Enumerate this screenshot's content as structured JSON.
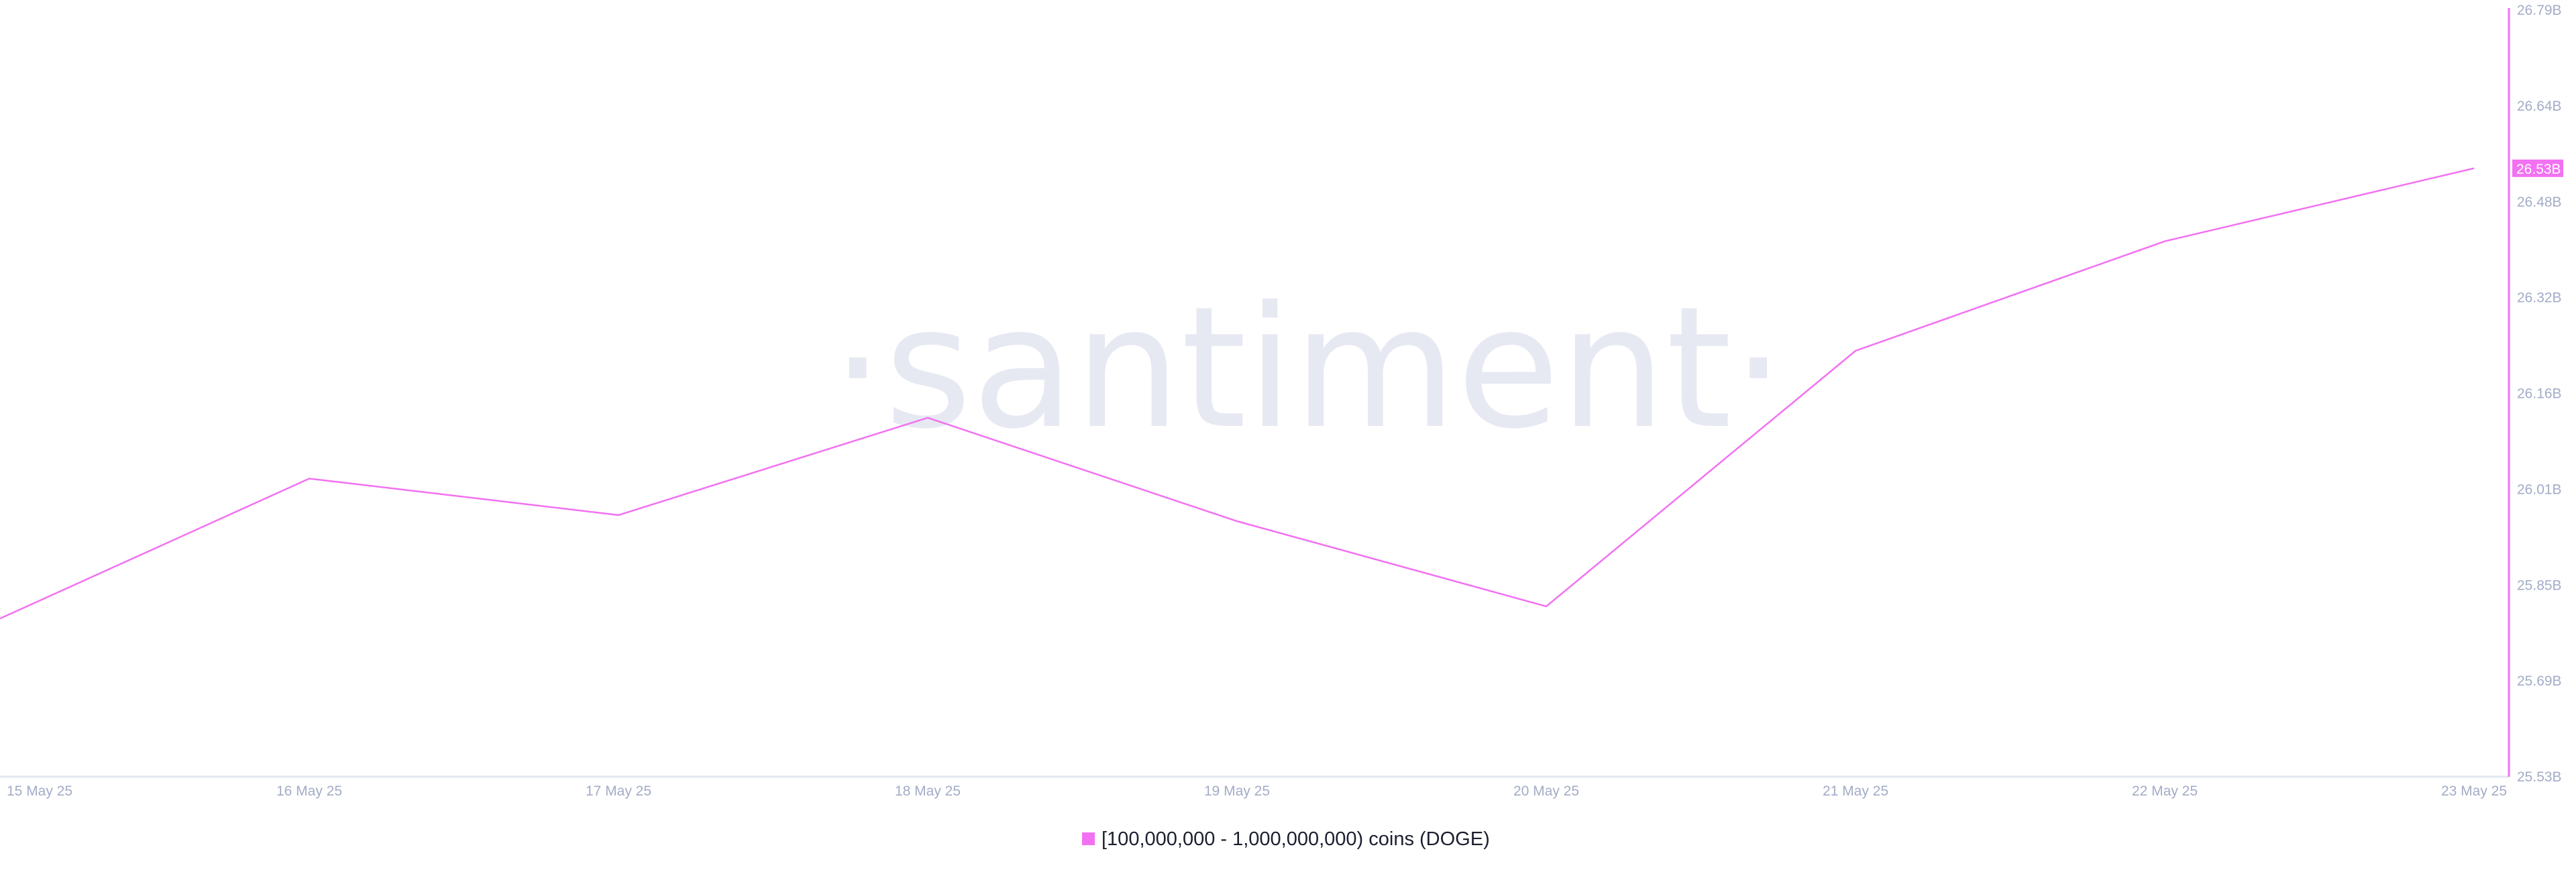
{
  "watermark": "·santiment·",
  "chart_data": {
    "type": "line",
    "title": "",
    "xlabel": "",
    "ylabel": "",
    "x": [
      "15 May 25",
      "16 May 25",
      "17 May 25",
      "18 May 25",
      "19 May 25",
      "20 May 25",
      "21 May 25",
      "22 May 25",
      "23 May 25"
    ],
    "series": [
      {
        "name": "[100,000,000 - 1,000,000,000) coins (DOGE)",
        "color": "#f271f2",
        "values": [
          25.79,
          26.02,
          25.96,
          26.12,
          25.95,
          25.81,
          26.23,
          26.41,
          26.53
        ]
      }
    ],
    "y_unit": "B",
    "ylim": [
      25.53,
      26.79
    ],
    "y_ticks": [
      "26.79B",
      "26.64B",
      "26.48B",
      "26.32B",
      "26.16B",
      "26.01B",
      "25.85B",
      "25.69B",
      "25.53B"
    ],
    "y_axis_position": "right",
    "last_value_label": "26.53B",
    "grid": false,
    "legend_position": "bottom"
  }
}
